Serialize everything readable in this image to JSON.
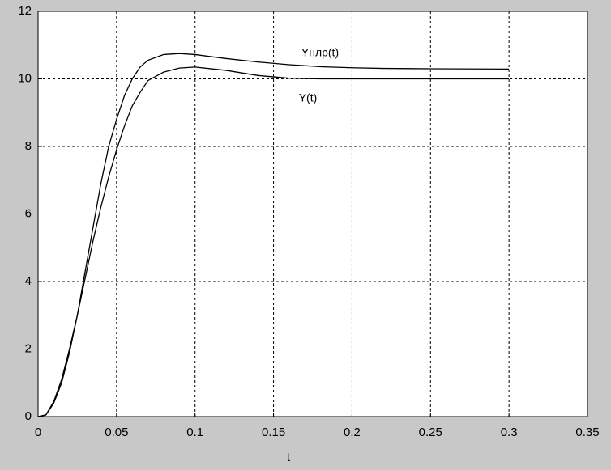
{
  "chart_data": {
    "type": "line",
    "x_label": "t",
    "x": [
      0,
      0.005,
      0.01,
      0.015,
      0.02,
      0.025,
      0.03,
      0.035,
      0.04,
      0.045,
      0.05,
      0.055,
      0.06,
      0.065,
      0.07,
      0.08,
      0.09,
      0.1,
      0.12,
      0.14,
      0.16,
      0.18,
      0.2,
      0.22,
      0.25,
      0.3
    ],
    "series": [
      {
        "name": "Yнлр(t)",
        "color": "#000000",
        "values": [
          0,
          0.05,
          0.4,
          1.0,
          1.9,
          3.0,
          4.3,
          5.6,
          6.9,
          8.0,
          8.8,
          9.5,
          10.0,
          10.35,
          10.55,
          10.72,
          10.75,
          10.72,
          10.6,
          10.5,
          10.42,
          10.36,
          10.33,
          10.31,
          10.3,
          10.29
        ]
      },
      {
        "name": "Y(t)",
        "color": "#000000",
        "values": [
          0,
          0.05,
          0.45,
          1.1,
          2.0,
          3.0,
          4.1,
          5.2,
          6.2,
          7.1,
          7.9,
          8.6,
          9.2,
          9.6,
          9.95,
          10.2,
          10.32,
          10.35,
          10.25,
          10.1,
          10.02,
          10.0,
          10.0,
          10.0,
          10.0,
          10.0
        ]
      }
    ],
    "xlim": [
      0,
      0.35
    ],
    "xticks": [
      0,
      0.05,
      0.1,
      0.15,
      0.2,
      0.25,
      0.3,
      0.35
    ],
    "ylim": [
      0,
      12
    ],
    "yticks": [
      0,
      2,
      4,
      6,
      8,
      10,
      12
    ],
    "grid": true
  }
}
